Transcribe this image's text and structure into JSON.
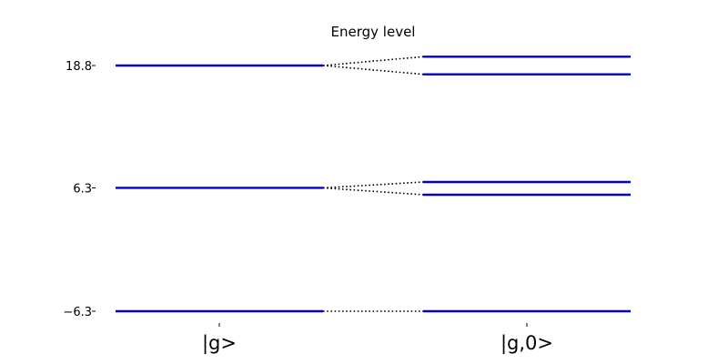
{
  "chart_data": {
    "type": "energy-level-diagram",
    "title": "Energy level",
    "columns": [
      "|g>",
      "|g,0>"
    ],
    "yticks": [
      {
        "value": -6.3,
        "label": "−6.3"
      },
      {
        "value": 6.3,
        "label": "6.3"
      },
      {
        "value": 18.8,
        "label": "18.8"
      }
    ],
    "ylim": [
      -6.3,
      18.8
    ],
    "levels": {
      "left": [
        -6.3,
        6.3,
        18.8
      ],
      "right": [
        -6.3,
        5.6,
        6.9,
        17.9,
        19.7
      ]
    },
    "connections": [
      {
        "from": -6.3,
        "to": -6.3
      },
      {
        "from": 6.3,
        "to": 5.6
      },
      {
        "from": 6.3,
        "to": 6.9
      },
      {
        "from": 18.8,
        "to": 17.9
      },
      {
        "from": 18.8,
        "to": 19.7
      }
    ],
    "colors": {
      "level": "#0000cc",
      "connector": "#000000",
      "axis": "#000000"
    }
  }
}
